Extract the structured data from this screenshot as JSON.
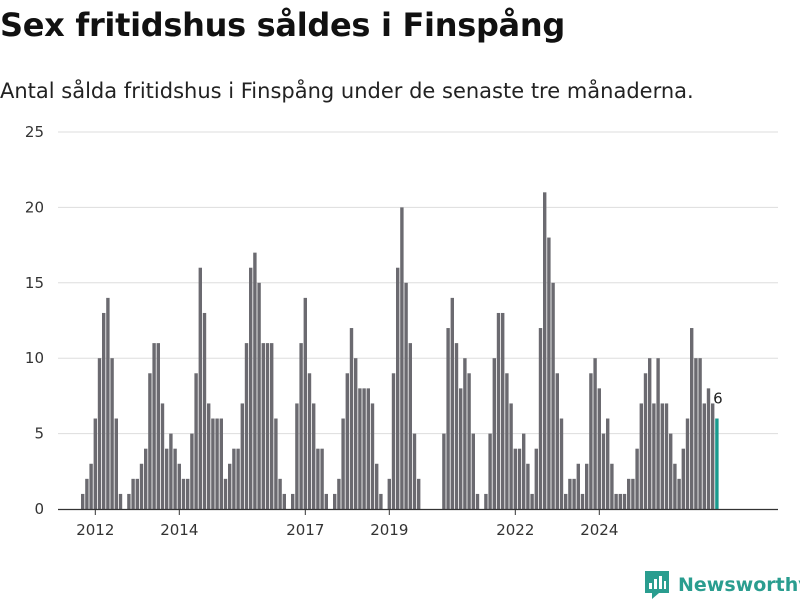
{
  "title": "Sex fritidshus såldes i Finspång",
  "subtitle": "Antal sålda fritidshus i Finspång under de senaste tre månaderna.",
  "brand": "Newsworthy",
  "colors": {
    "bar": "#6b6a70",
    "highlight": "#1a9a8e",
    "grid": "#dddddd",
    "axis": "#333333",
    "brand": "#2a9d8f"
  },
  "chart_data": {
    "type": "bar",
    "title": "Sex fritidshus såldes i Finspång",
    "subtitle": "Antal sålda fritidshus i Finspång under de senaste tre månaderna.",
    "xlabel": "",
    "ylabel": "",
    "ylim": [
      0,
      25
    ],
    "yticks": [
      0,
      5,
      10,
      15,
      20,
      25
    ],
    "grid": true,
    "x_tick_labels": [
      "2012",
      "2014",
      "2017",
      "2019",
      "2022",
      "2024"
    ],
    "x_tick_index": [
      4,
      24,
      54,
      74,
      104,
      124
    ],
    "last_value_label": "6",
    "values": [
      0,
      1,
      2,
      3,
      6,
      10,
      13,
      14,
      10,
      6,
      1,
      0,
      1,
      2,
      2,
      3,
      4,
      9,
      11,
      11,
      7,
      4,
      5,
      4,
      3,
      2,
      2,
      5,
      9,
      16,
      13,
      7,
      6,
      6,
      6,
      2,
      3,
      4,
      4,
      7,
      11,
      16,
      17,
      15,
      11,
      11,
      11,
      6,
      2,
      1,
      0,
      1,
      7,
      11,
      14,
      9,
      7,
      4,
      4,
      1,
      0,
      1,
      2,
      6,
      9,
      12,
      10,
      8,
      8,
      8,
      7,
      3,
      1,
      0,
      2,
      9,
      16,
      20,
      15,
      11,
      5,
      2,
      0,
      0,
      0,
      0,
      0,
      5,
      12,
      14,
      11,
      8,
      10,
      9,
      5,
      1,
      0,
      1,
      5,
      10,
      13,
      13,
      9,
      7,
      4,
      4,
      5,
      3,
      1,
      4,
      12,
      21,
      18,
      15,
      9,
      6,
      1,
      2,
      2,
      3,
      1,
      3,
      9,
      10,
      8,
      5,
      6,
      3,
      1,
      1,
      1,
      2,
      2,
      4,
      7,
      9,
      10,
      7,
      10,
      7,
      7,
      5,
      3,
      2,
      4,
      6,
      12,
      10,
      10,
      7,
      8,
      7,
      6
    ]
  }
}
